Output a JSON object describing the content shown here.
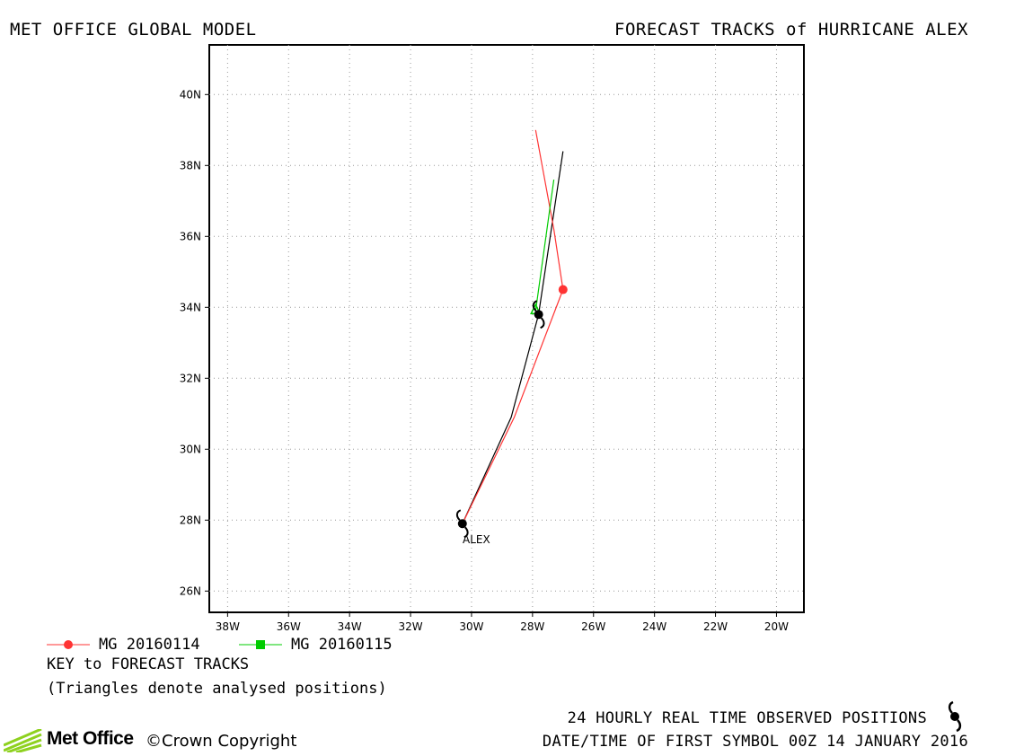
{
  "header": {
    "left_title": "MET OFFICE GLOBAL MODEL",
    "right_title": "FORECAST TRACKS of HURRICANE ALEX"
  },
  "chart_data": {
    "type": "map-track",
    "x_ticks": [
      "38W",
      "36W",
      "34W",
      "32W",
      "30W",
      "28W",
      "26W",
      "24W",
      "22W",
      "20W"
    ],
    "y_ticks": [
      "26N",
      "28N",
      "30N",
      "32N",
      "34N",
      "36N",
      "38N",
      "40N"
    ],
    "xlim": [
      -38.6,
      -19.1
    ],
    "ylim": [
      25.4,
      41.4
    ],
    "grid": true,
    "storm_label": "ALEX",
    "colors": {
      "mg_20160114": "#ff3333",
      "mg_20160115": "#00cc00",
      "observed": "#000000"
    },
    "series": [
      {
        "key": "observed",
        "points": [
          [
            -30.3,
            27.9
          ],
          [
            -28.7,
            30.9
          ],
          [
            -27.8,
            33.8
          ],
          [
            -27.0,
            38.4
          ]
        ]
      },
      {
        "key": "mg_20160114",
        "points": [
          [
            -30.3,
            27.9
          ],
          [
            -28.6,
            30.9
          ],
          [
            -27.0,
            34.5
          ],
          [
            -27.3,
            36.2
          ],
          [
            -27.9,
            39.0
          ]
        ]
      },
      {
        "key": "mg_20160115",
        "points": [
          [
            -27.9,
            33.9
          ],
          [
            -27.3,
            37.6
          ]
        ]
      }
    ],
    "observed_symbols": [
      [
        -30.3,
        27.9
      ],
      [
        -27.8,
        33.8
      ]
    ],
    "forecast_marker": {
      "key": "mg_20160114",
      "point": [
        -27.0,
        34.5
      ]
    }
  },
  "legend": {
    "items": [
      {
        "label": "MG 20160114",
        "color": "#ff3333",
        "marker": "circle"
      },
      {
        "label": "MG 20160115",
        "color": "#00cc00",
        "marker": "square"
      }
    ],
    "key_title": "KEY to FORECAST TRACKS",
    "key_note": "(Triangles denote analysed positions)"
  },
  "footer": {
    "observed_text": "24 HOURLY REAL TIME OBSERVED POSITIONS",
    "first_symbol_text": "DATE/TIME OF FIRST SYMBOL 00Z 14 JANUARY 2016",
    "logo_text": "Met Office",
    "copyright_text": "©Crown Copyright"
  }
}
